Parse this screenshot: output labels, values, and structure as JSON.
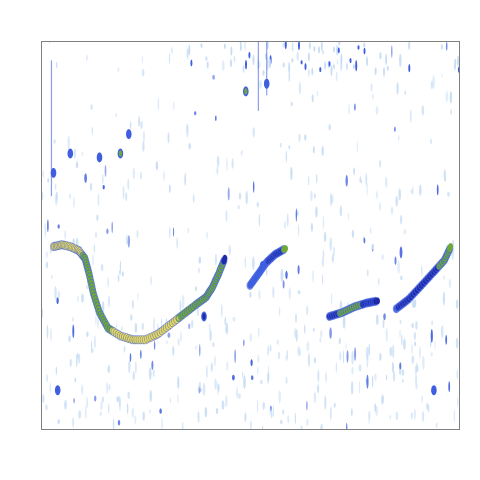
{
  "chart_data": {
    "type": "heatmap",
    "title": "",
    "xlabel": "",
    "ylabel": "",
    "xlim": [
      0,
      100
    ],
    "ylim": [
      0,
      100
    ],
    "grid": false,
    "legend": "none",
    "colors": {
      "low": "#c9def5",
      "mid_low": "#3f5fe0",
      "mid": "#1f2aa8",
      "mid_high": "#6fa838",
      "high": "#e6d85a",
      "frame": "#808080"
    },
    "tracks": [
      {
        "name": "",
        "points": [
          {
            "x": 3,
            "y": 47,
            "v": 0.95
          },
          {
            "x": 5,
            "y": 47.5,
            "v": 0.95
          },
          {
            "x": 7,
            "y": 47,
            "v": 1.0
          },
          {
            "x": 9,
            "y": 46,
            "v": 0.95
          },
          {
            "x": 10.5,
            "y": 44,
            "v": 0.9
          },
          {
            "x": 11.5,
            "y": 40,
            "v": 0.85
          },
          {
            "x": 12.5,
            "y": 35,
            "v": 0.85
          },
          {
            "x": 14,
            "y": 30,
            "v": 0.85
          },
          {
            "x": 16,
            "y": 26,
            "v": 0.9
          },
          {
            "x": 19,
            "y": 24,
            "v": 0.95
          },
          {
            "x": 22,
            "y": 23,
            "v": 0.95
          },
          {
            "x": 25,
            "y": 23,
            "v": 1.0
          },
          {
            "x": 28,
            "y": 24.5,
            "v": 0.95
          },
          {
            "x": 31,
            "y": 27,
            "v": 0.95
          },
          {
            "x": 34,
            "y": 29.5,
            "v": 0.9
          },
          {
            "x": 37,
            "y": 32,
            "v": 0.85
          },
          {
            "x": 39.5,
            "y": 34,
            "v": 0.85
          },
          {
            "x": 41,
            "y": 36.5,
            "v": 0.85
          },
          {
            "x": 42.5,
            "y": 40,
            "v": 0.8
          },
          {
            "x": 44,
            "y": 44,
            "v": 0.7
          }
        ]
      },
      {
        "name": "",
        "points": [
          {
            "x": 50,
            "y": 37,
            "v": 0.5
          },
          {
            "x": 52,
            "y": 40,
            "v": 0.55
          },
          {
            "x": 54,
            "y": 43,
            "v": 0.55
          },
          {
            "x": 56,
            "y": 45,
            "v": 0.6
          },
          {
            "x": 58.5,
            "y": 46.5,
            "v": 0.75
          }
        ]
      },
      {
        "name": "",
        "points": [
          {
            "x": 69,
            "y": 29,
            "v": 0.6
          },
          {
            "x": 72,
            "y": 30,
            "v": 0.75
          },
          {
            "x": 75,
            "y": 31.5,
            "v": 0.75
          },
          {
            "x": 78,
            "y": 32.5,
            "v": 0.7
          },
          {
            "x": 80.5,
            "y": 33,
            "v": 0.65
          }
        ]
      },
      {
        "name": "",
        "points": [
          {
            "x": 85,
            "y": 31,
            "v": 0.55
          },
          {
            "x": 88,
            "y": 33.5,
            "v": 0.6
          },
          {
            "x": 91,
            "y": 37,
            "v": 0.65
          },
          {
            "x": 94,
            "y": 40.5,
            "v": 0.7
          },
          {
            "x": 96.5,
            "y": 43.5,
            "v": 0.75
          },
          {
            "x": 98,
            "y": 47,
            "v": 0.75
          }
        ]
      }
    ],
    "spots": [
      {
        "x": 49,
        "y": 87,
        "v": 0.8
      },
      {
        "x": 54,
        "y": 89,
        "v": 0.4
      },
      {
        "x": 19,
        "y": 71,
        "v": 0.85
      },
      {
        "x": 14,
        "y": 70,
        "v": 0.55
      },
      {
        "x": 7,
        "y": 71,
        "v": 0.5
      },
      {
        "x": 21,
        "y": 76,
        "v": 0.45
      },
      {
        "x": 3,
        "y": 66,
        "v": 0.4
      },
      {
        "x": 53,
        "y": 42,
        "v": 0.55
      },
      {
        "x": 39,
        "y": 29,
        "v": 0.6
      },
      {
        "x": 94,
        "y": 10,
        "v": 0.45
      },
      {
        "x": 4,
        "y": 10,
        "v": 0.45
      }
    ]
  }
}
